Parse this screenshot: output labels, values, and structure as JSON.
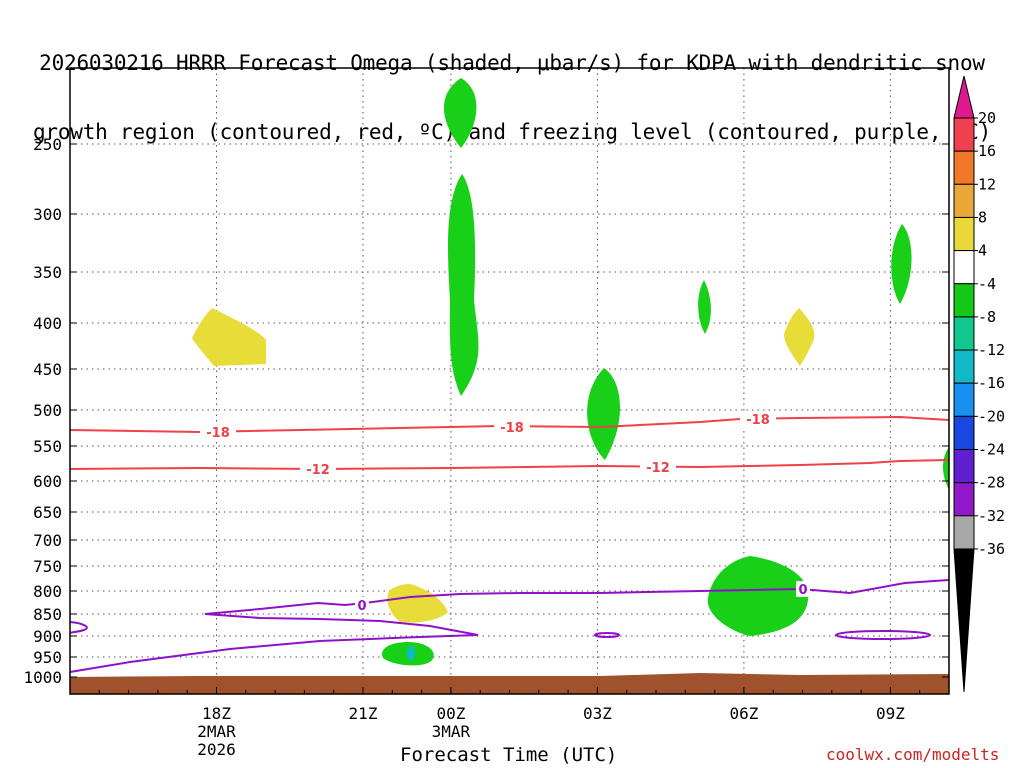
{
  "title": {
    "line1": "2026030216 HRRR Forecast Omega (shaded, μbar/s) for KDPA with dendritic snow",
    "line2": "growth region (contoured, red, ºC) and freezing level (contoured, purple, ºC)"
  },
  "xlabel": "Forecast Time (UTC)",
  "credit": "coolwx.com/modelts",
  "chart_data": {
    "type": "time-height cross section",
    "x_range_hours": [
      -3,
      27
    ],
    "y_range_hPa": [
      1000,
      200
    ],
    "y_ticks": [
      250,
      300,
      350,
      400,
      450,
      500,
      550,
      600,
      650,
      700,
      750,
      800,
      850,
      900,
      950,
      1000
    ],
    "x_ticks": [
      {
        "hour": 2,
        "label": "18Z",
        "date": "2MAR",
        "year": "2026"
      },
      {
        "hour": 7,
        "label": "21Z",
        "date": "",
        "year": ""
      },
      {
        "hour": 10,
        "label": "00Z",
        "date": "3MAR",
        "year": ""
      },
      {
        "hour": 15,
        "label": "03Z",
        "date": "",
        "year": ""
      },
      {
        "hour": 20,
        "label": "06Z",
        "date": "",
        "year": ""
      },
      {
        "hour": 25,
        "label": "09Z",
        "date": "",
        "year": ""
      }
    ],
    "colorbar": {
      "labels": [
        "20",
        "16",
        "12",
        "8",
        "4",
        "-4",
        "-8",
        "-12",
        "-16",
        "-20",
        "-24",
        "-28",
        "-32",
        "-36"
      ],
      "colors": [
        "#f04050",
        "#f07828",
        "#e8a838",
        "#e8d838",
        "#ffffff",
        "#18c818",
        "#10c890",
        "#10b8c8",
        "#1890f0",
        "#1848e0",
        "#6020d0",
        "#9018c8",
        "#a8a8a8"
      ],
      "top_color": "#e01890",
      "bottom_color": "#000000"
    },
    "contours": [
      {
        "name": "dgz-minus18",
        "label": "-18",
        "color": "#f04048"
      },
      {
        "name": "dgz-minus12",
        "label": "-12",
        "color": "#f04048"
      },
      {
        "name": "freezing-level",
        "label": "0",
        "color": "#9010c8"
      }
    ],
    "omega_regions": [
      {
        "name": "omega-green-top",
        "value": "-4 to -8",
        "color": "#18d018"
      },
      {
        "name": "omega-green-column",
        "value": "-4 to -8",
        "color": "#18d018"
      },
      {
        "name": "omega-green-03z",
        "value": "-4 to -8",
        "color": "#18d018"
      },
      {
        "name": "omega-green-05z",
        "value": "-4 to -8",
        "color": "#18d018"
      },
      {
        "name": "omega-green-09z",
        "value": "-4 to -8",
        "color": "#18d018"
      },
      {
        "name": "omega-green-06z-low",
        "value": "-4 to -8",
        "color": "#18d018"
      },
      {
        "name": "omega-green-2330z-low",
        "value": "-4 to -8",
        "color": "#18d018"
      },
      {
        "name": "omega-green-right-edge",
        "value": "-4 to -8",
        "color": "#18d018"
      },
      {
        "name": "omega-yellow-19z",
        "value": "4 to 8",
        "color": "#e8dc38"
      },
      {
        "name": "omega-yellow-07z",
        "value": "4 to 8",
        "color": "#e8dc38"
      },
      {
        "name": "omega-yellow-23z",
        "value": "4 to 8",
        "color": "#e8dc38"
      }
    ],
    "ground_color": "#a0522d"
  }
}
